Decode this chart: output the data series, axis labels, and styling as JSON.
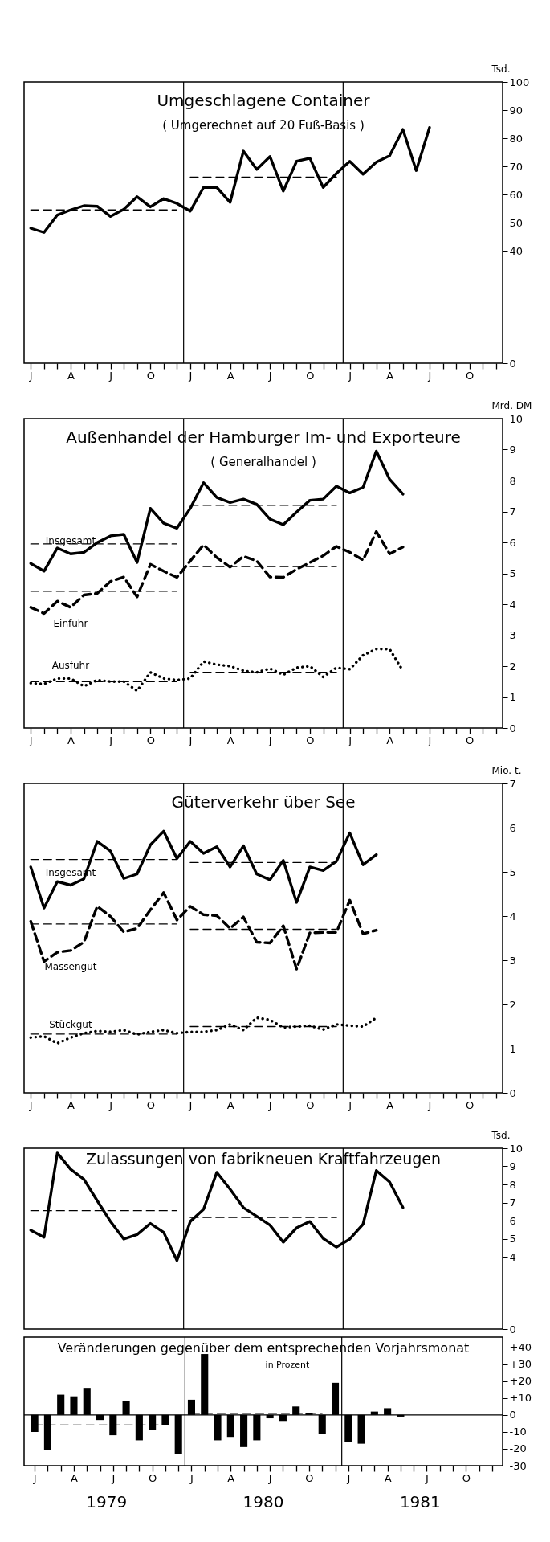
{
  "chart_data": [
    {
      "type": "line",
      "title": "Umgeschlagene Container",
      "subtitle": "( Umgerechnet auf 20 Fuß-Basis )",
      "ylabel": "Tsd.",
      "categories": [
        "J",
        null,
        null,
        "A",
        null,
        null,
        "J",
        null,
        null,
        "O",
        null,
        null,
        "J",
        null,
        null,
        "A",
        null,
        null,
        "J",
        null,
        null,
        "O",
        null,
        null,
        "J",
        null,
        null,
        "A",
        null,
        null,
        "J",
        null,
        null,
        "O",
        null,
        null
      ],
      "ylim": [
        0,
        100
      ],
      "yticks": [
        0,
        40,
        50,
        60,
        70,
        80,
        90,
        100
      ],
      "series": [
        {
          "color": "#000000",
          "line_style": "solid",
          "values": [
            48,
            46.5,
            52.7,
            54.5,
            56,
            55.8,
            52.2,
            54.7,
            59.2,
            55.6,
            58.5,
            56.8,
            54.1,
            62.5,
            62.5,
            57.2,
            75.4,
            68.9,
            73.5,
            61.2,
            71.8,
            72.9,
            62.5,
            67.5,
            71.8,
            67.2,
            71.5,
            73.8,
            83.1,
            68.5,
            83.8,
            null,
            null,
            null,
            null,
            null
          ]
        },
        {
          "type": "line",
          "color": "#000000",
          "line_style": "dashed",
          "values": [
            54.5,
            54.5,
            54.5,
            54.5,
            54.5,
            54.5,
            54.5,
            54.5,
            54.5,
            54.5,
            54.5,
            54.5,
            null,
            null,
            null,
            null,
            null,
            null,
            null,
            null,
            null,
            null,
            null,
            null,
            null,
            null,
            null,
            null,
            null,
            null,
            null,
            null,
            null,
            null,
            null,
            null
          ]
        },
        {
          "type": "line",
          "color": "#000000",
          "line_style": "dashed",
          "values": [
            null,
            null,
            null,
            null,
            null,
            null,
            null,
            null,
            null,
            null,
            null,
            null,
            66.2,
            66.2,
            66.2,
            66.2,
            66.2,
            66.2,
            66.2,
            66.2,
            66.2,
            66.2,
            66.2,
            66.2,
            null,
            null,
            null,
            null,
            null,
            null,
            null,
            null,
            null,
            null,
            null,
            null
          ]
        }
      ]
    },
    {
      "type": "line",
      "title": "Außenhandel der Hamburger Im- und Exporteure",
      "subtitle": "( Generalhandel )",
      "ylabel": "Mrd. DM",
      "categories": [
        "J",
        null,
        null,
        "A",
        null,
        null,
        "J",
        null,
        null,
        "O",
        null,
        null,
        "J",
        null,
        null,
        "A",
        null,
        null,
        "J",
        null,
        null,
        "O",
        null,
        null,
        "J",
        null,
        null,
        "A",
        null,
        null,
        "J",
        null,
        null,
        "O",
        null,
        null
      ],
      "ylim": [
        0,
        10
      ],
      "yticks": [
        0,
        1,
        2,
        3,
        4,
        5,
        6,
        7,
        8,
        9,
        10
      ],
      "series": [
        {
          "name": "Insgesamt",
          "color": "#000000",
          "line_style": "solid",
          "values": [
            5.32,
            5.07,
            5.82,
            5.63,
            5.68,
            5.99,
            6.21,
            6.26,
            5.35,
            7.1,
            6.62,
            6.46,
            7.1,
            7.93,
            7.45,
            7.29,
            7.4,
            7.23,
            6.75,
            6.57,
            6.98,
            7.36,
            7.4,
            7.82,
            7.6,
            7.78,
            8.95,
            8.04,
            7.56,
            null,
            null,
            null,
            null,
            null,
            null,
            null
          ]
        },
        {
          "name": "Einfuhr",
          "color": "#000000",
          "line_style": "dashed",
          "values": [
            3.9,
            3.7,
            4.1,
            3.9,
            4.3,
            4.35,
            4.74,
            4.88,
            4.24,
            5.29,
            5.07,
            4.87,
            5.4,
            5.92,
            5.51,
            5.2,
            5.55,
            5.4,
            4.88,
            4.87,
            5.13,
            5.35,
            5.57,
            5.87,
            5.68,
            5.43,
            6.35,
            5.63,
            5.85,
            null,
            null,
            null,
            null,
            null,
            null,
            null
          ]
        },
        {
          "name": "Ausfuhr",
          "color": "#000000",
          "line_style": "dotted",
          "values": [
            1.45,
            1.42,
            1.6,
            1.6,
            1.35,
            1.55,
            1.5,
            1.5,
            1.2,
            1.8,
            1.6,
            1.55,
            1.6,
            2.15,
            2.05,
            2.0,
            1.85,
            1.8,
            1.92,
            1.72,
            1.95,
            2.0,
            1.65,
            1.95,
            1.9,
            2.35,
            2.55,
            2.55,
            1.85,
            null,
            null,
            null,
            null,
            null,
            null,
            null
          ]
        },
        {
          "type": "line",
          "color": "#000000",
          "line_style": "dashed",
          "values": [
            5.95,
            5.95,
            5.95,
            5.95,
            5.95,
            5.95,
            5.95,
            5.95,
            5.95,
            5.95,
            5.95,
            5.95,
            null,
            null,
            null,
            null,
            null,
            null,
            null,
            null,
            null,
            null,
            null,
            null,
            null,
            null,
            null,
            null,
            null,
            null,
            null,
            null,
            null,
            null,
            null,
            null
          ]
        },
        {
          "type": "line",
          "color": "#000000",
          "line_style": "dashed",
          "values": [
            null,
            null,
            null,
            null,
            null,
            null,
            null,
            null,
            null,
            null,
            null,
            null,
            7.2,
            7.2,
            7.2,
            7.2,
            7.2,
            7.2,
            7.2,
            7.2,
            7.2,
            7.2,
            7.2,
            7.2,
            null,
            null,
            null,
            null,
            null,
            null,
            null,
            null,
            null,
            null,
            null,
            null
          ]
        },
        {
          "type": "line",
          "color": "#000000",
          "line_style": "dashed",
          "values": [
            4.42,
            4.42,
            4.42,
            4.42,
            4.42,
            4.42,
            4.42,
            4.42,
            4.42,
            4.42,
            4.42,
            4.42,
            null,
            null,
            null,
            null,
            null,
            null,
            null,
            null,
            null,
            null,
            null,
            null,
            null,
            null,
            null,
            null,
            null,
            null,
            null,
            null,
            null,
            null,
            null,
            null
          ]
        },
        {
          "type": "line",
          "color": "#000000",
          "line_style": "dashed",
          "values": [
            null,
            null,
            null,
            null,
            null,
            null,
            null,
            null,
            null,
            null,
            null,
            null,
            5.22,
            5.22,
            5.22,
            5.22,
            5.22,
            5.22,
            5.22,
            5.22,
            5.22,
            5.22,
            5.22,
            5.22,
            null,
            null,
            null,
            null,
            null,
            null,
            null,
            null,
            null,
            null,
            null,
            null
          ]
        },
        {
          "type": "line",
          "color": "#000000",
          "line_style": "dashed",
          "values": [
            1.5,
            1.5,
            1.5,
            1.5,
            1.5,
            1.5,
            1.5,
            1.5,
            1.5,
            1.5,
            1.5,
            1.5,
            null,
            null,
            null,
            null,
            null,
            null,
            null,
            null,
            null,
            null,
            null,
            null,
            null,
            null,
            null,
            null,
            null,
            null,
            null,
            null,
            null,
            null,
            null,
            null
          ]
        },
        {
          "type": "line",
          "color": "#000000",
          "line_style": "dashed",
          "values": [
            null,
            null,
            null,
            null,
            null,
            null,
            null,
            null,
            null,
            null,
            null,
            null,
            1.8,
            1.8,
            1.8,
            1.8,
            1.8,
            1.8,
            1.8,
            1.8,
            1.8,
            1.8,
            1.8,
            1.8,
            null,
            null,
            null,
            null,
            null,
            null,
            null,
            null,
            null,
            null,
            null,
            null
          ]
        }
      ]
    },
    {
      "type": "line",
      "title": "Güterverkehr über See",
      "ylabel": "Mio. t.",
      "categories": [
        "J",
        null,
        null,
        "A",
        null,
        null,
        "J",
        null,
        null,
        "O",
        null,
        null,
        "J",
        null,
        null,
        "A",
        null,
        null,
        "J",
        null,
        null,
        "O",
        null,
        null,
        "J",
        null,
        null,
        "A",
        null,
        null,
        "J",
        null,
        null,
        "O",
        null,
        null
      ],
      "ylim": [
        0,
        7
      ],
      "yticks": [
        0,
        1,
        2,
        3,
        4,
        5,
        6,
        7
      ],
      "series": [
        {
          "name": "Insgesamt",
          "color": "#000000",
          "line_style": "solid",
          "values": [
            5.11,
            4.18,
            4.78,
            4.7,
            4.84,
            5.69,
            5.47,
            4.85,
            4.95,
            5.61,
            5.92,
            5.3,
            5.69,
            5.42,
            5.57,
            5.11,
            5.59,
            4.95,
            4.82,
            5.26,
            4.31,
            5.11,
            5.03,
            5.24,
            5.88,
            5.16,
            5.39,
            null,
            null,
            null,
            null,
            null,
            null,
            null,
            null,
            null
          ]
        },
        {
          "name": "Massengut",
          "color": "#000000",
          "line_style": "dashed",
          "values": [
            3.88,
            2.97,
            3.18,
            3.22,
            3.41,
            4.22,
            3.99,
            3.64,
            3.72,
            4.14,
            4.53,
            3.91,
            4.22,
            4.03,
            4.01,
            3.72,
            3.98,
            3.41,
            3.39,
            3.78,
            2.8,
            3.62,
            3.63,
            3.63,
            4.36,
            3.6,
            3.68,
            null,
            null,
            null,
            null,
            null,
            null,
            null,
            null,
            null
          ]
        },
        {
          "name": "Stückgut",
          "color": "#000000",
          "line_style": "dotted",
          "values": [
            1.25,
            1.28,
            1.12,
            1.25,
            1.35,
            1.4,
            1.38,
            1.42,
            1.32,
            1.38,
            1.42,
            1.35,
            1.38,
            1.38,
            1.42,
            1.55,
            1.42,
            1.7,
            1.65,
            1.48,
            1.5,
            1.52,
            1.43,
            1.55,
            1.52,
            1.5,
            1.7,
            null,
            null,
            null,
            null,
            null,
            null,
            null,
            null,
            null
          ]
        },
        {
          "type": "line",
          "color": "#000000",
          "line_style": "dashed",
          "values": [
            5.28,
            5.28,
            5.28,
            5.28,
            5.28,
            5.28,
            5.28,
            5.28,
            5.28,
            5.28,
            5.28,
            5.28,
            null,
            null,
            null,
            null,
            null,
            null,
            null,
            null,
            null,
            null,
            null,
            null,
            null,
            null,
            null,
            null,
            null,
            null,
            null,
            null,
            null,
            null,
            null,
            null
          ]
        },
        {
          "type": "line",
          "color": "#000000",
          "line_style": "dashed",
          "values": [
            null,
            null,
            null,
            null,
            null,
            null,
            null,
            null,
            null,
            null,
            null,
            null,
            5.21,
            5.21,
            5.21,
            5.21,
            5.21,
            5.21,
            5.21,
            5.21,
            5.21,
            5.21,
            5.21,
            5.21,
            null,
            null,
            null,
            null,
            null,
            null,
            null,
            null,
            null,
            null,
            null,
            null
          ]
        },
        {
          "type": "line",
          "color": "#000000",
          "line_style": "dashed",
          "values": [
            3.82,
            3.82,
            3.82,
            3.82,
            3.82,
            3.82,
            3.82,
            3.82,
            3.82,
            3.82,
            3.82,
            3.82,
            null,
            null,
            null,
            null,
            null,
            null,
            null,
            null,
            null,
            null,
            null,
            null,
            null,
            null,
            null,
            null,
            null,
            null,
            null,
            null,
            null,
            null,
            null,
            null
          ]
        },
        {
          "type": "line",
          "color": "#000000",
          "line_style": "dashed",
          "values": [
            null,
            null,
            null,
            null,
            null,
            null,
            null,
            null,
            null,
            null,
            null,
            null,
            3.7,
            3.7,
            3.7,
            3.7,
            3.7,
            3.7,
            3.7,
            3.7,
            3.7,
            3.7,
            3.7,
            3.7,
            null,
            null,
            null,
            null,
            null,
            null,
            null,
            null,
            null,
            null,
            null,
            null
          ]
        },
        {
          "type": "line",
          "color": "#000000",
          "line_style": "dashed",
          "values": [
            1.33,
            1.33,
            1.33,
            1.33,
            1.33,
            1.33,
            1.33,
            1.33,
            1.33,
            1.33,
            1.33,
            1.33,
            null,
            null,
            null,
            null,
            null,
            null,
            null,
            null,
            null,
            null,
            null,
            null,
            null,
            null,
            null,
            null,
            null,
            null,
            null,
            null,
            null,
            null,
            null,
            null
          ]
        },
        {
          "type": "line",
          "color": "#000000",
          "line_style": "dashed",
          "values": [
            null,
            null,
            null,
            null,
            null,
            null,
            null,
            null,
            null,
            null,
            null,
            null,
            1.5,
            1.5,
            1.5,
            1.5,
            1.5,
            1.5,
            1.5,
            1.5,
            1.5,
            1.5,
            1.5,
            1.5,
            null,
            null,
            null,
            null,
            null,
            null,
            null,
            null,
            null,
            null,
            null,
            null
          ]
        }
      ]
    },
    {
      "type": "line",
      "title": "Zulassungen von fabrikneuen Kraftfahrzeugen",
      "ylabel": "Tsd.",
      "tick_labels": "y",
      "categories": [
        null,
        null,
        null,
        null,
        null,
        null,
        null,
        null,
        null,
        null,
        null,
        null,
        null,
        null,
        null,
        null,
        null,
        null,
        null,
        null,
        null,
        null,
        null,
        null,
        null,
        null,
        null,
        null,
        null,
        null,
        null,
        null,
        null,
        null,
        null,
        null
      ],
      "ylim": [
        0,
        10
      ],
      "yticks": [
        0,
        4,
        5,
        6,
        7,
        8,
        9,
        10
      ],
      "series": [
        {
          "color": "#000000",
          "line_style": "solid",
          "values": [
            5.47,
            5.08,
            9.74,
            8.84,
            8.28,
            7.1,
            5.95,
            4.98,
            5.23,
            5.84,
            5.35,
            3.79,
            5.95,
            6.62,
            8.67,
            7.73,
            6.72,
            6.24,
            5.75,
            4.8,
            5.6,
            5.95,
            5.01,
            4.53,
            4.98,
            5.8,
            8.77,
            8.13,
            6.72,
            null,
            null,
            null,
            null,
            null,
            null,
            null
          ]
        },
        {
          "type": "line",
          "color": "#000000",
          "line_style": "dashed",
          "values": [
            6.55,
            6.55,
            6.55,
            6.55,
            6.55,
            6.55,
            6.55,
            6.55,
            6.55,
            6.55,
            6.55,
            6.55,
            null,
            null,
            null,
            null,
            null,
            null,
            null,
            null,
            null,
            null,
            null,
            null,
            null,
            null,
            null,
            null,
            null,
            null,
            null,
            null,
            null,
            null,
            null,
            null
          ]
        },
        {
          "type": "line",
          "color": "#000000",
          "line_style": "dashed",
          "values": [
            null,
            null,
            null,
            null,
            null,
            null,
            null,
            null,
            null,
            null,
            null,
            null,
            6.17,
            6.17,
            6.17,
            6.17,
            6.17,
            6.17,
            6.17,
            6.17,
            6.17,
            6.17,
            6.17,
            6.17,
            null,
            null,
            null,
            null,
            null,
            null,
            null,
            null,
            null,
            null,
            null,
            null
          ]
        }
      ]
    },
    {
      "type": "bar",
      "title": "Veränderungen gegenüber dem entsprechenden Vorjahrsmonat",
      "subtitle": "in Prozent",
      "categories": [
        "J",
        null,
        null,
        "A",
        null,
        null,
        "J",
        null,
        null,
        "O",
        null,
        null,
        "J",
        null,
        null,
        "A",
        null,
        null,
        "J",
        null,
        null,
        "O",
        null,
        null,
        "J",
        null,
        null,
        "A",
        null,
        null,
        "J",
        null,
        null,
        "O",
        null,
        null
      ],
      "ylim": [
        -30,
        46
      ],
      "yticks": [
        {
          "value": 40,
          "label": "+40"
        },
        {
          "value": 30,
          "label": "+30"
        },
        {
          "value": 20,
          "label": "+20"
        },
        {
          "value": 10,
          "label": "+10"
        },
        0,
        {
          "value": -10,
          "label": "-10"
        },
        {
          "value": -20,
          "label": "-20"
        },
        {
          "value": -30,
          "label": "-30"
        }
      ],
      "series": [
        {
          "color": "#000000",
          "values": [
            -10,
            -21,
            12,
            11,
            16,
            -3,
            -12,
            8,
            -15,
            -9,
            -6,
            -23,
            9,
            36,
            -15,
            -13,
            -19,
            -15,
            -2,
            -4,
            5,
            1,
            -11,
            19,
            -16,
            -17,
            2,
            4,
            -1,
            null,
            null,
            null,
            null,
            null,
            null,
            null
          ]
        },
        {
          "type": "line",
          "color": "#000000",
          "line_style": "dashed",
          "values": [
            -6,
            -6,
            -6,
            -6,
            -6,
            -6,
            -6,
            -6,
            -6,
            -6,
            -6,
            null,
            null,
            null,
            null,
            null,
            null,
            null,
            null,
            null,
            null,
            null,
            null,
            null,
            null,
            null,
            null,
            null,
            null,
            null,
            null,
            null,
            null,
            null,
            null,
            null
          ]
        },
        {
          "type": "line",
          "color": "#000000",
          "line_style": "dashed",
          "values": [
            null,
            null,
            null,
            null,
            null,
            null,
            null,
            null,
            null,
            null,
            null,
            null,
            1,
            1,
            1,
            1,
            1,
            1,
            1,
            1,
            1,
            1,
            1,
            null,
            null,
            null,
            null,
            null,
            null,
            null,
            null,
            null,
            null,
            null,
            null,
            null
          ]
        }
      ],
      "ref_lines": [
        {
          "axis": "y",
          "value": 0
        }
      ],
      "annotations": [
        "1979",
        "1980",
        "1981"
      ]
    }
  ]
}
